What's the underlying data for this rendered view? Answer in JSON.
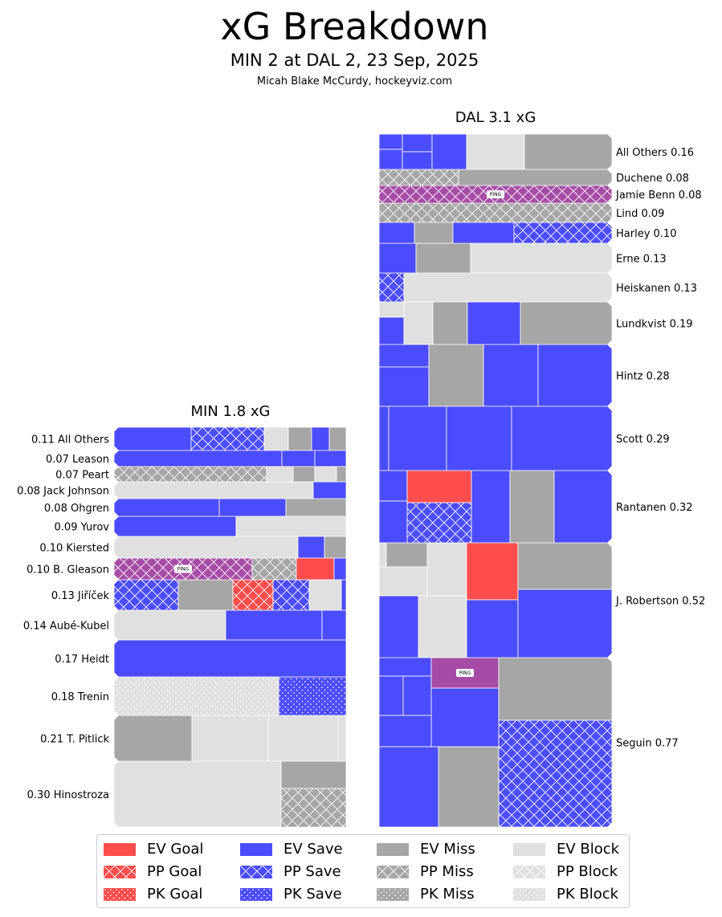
{
  "header": {
    "title": "xG Breakdown",
    "subtitle": "MIN 2 at DAL 2, 23 Sep, 2025",
    "credit": "Micah Blake McCurdy, hockeyviz.com"
  },
  "colors": {
    "goal": "#ff4d4d",
    "save": "#4c4cff",
    "miss": "#a6a6a6",
    "block": "#e0e0e0",
    "ping": "#a64ca6"
  },
  "chart_data": {
    "type": "treemap",
    "title": "xG Breakdown",
    "teams": [
      {
        "name": "MIN",
        "title": "MIN 1.8 xG",
        "total_xg": 1.8,
        "label_side": "left",
        "players": [
          {
            "name": "All Others",
            "xg": 0.11,
            "label": "0.11 All Others"
          },
          {
            "name": "Leason",
            "xg": 0.07,
            "label": "0.07 Leason"
          },
          {
            "name": "Peart",
            "xg": 0.07,
            "label": "0.07 Peart"
          },
          {
            "name": "Jack Johnson",
            "xg": 0.08,
            "label": "0.08 Jack Johnson"
          },
          {
            "name": "Ohgren",
            "xg": 0.08,
            "label": "0.08 Ohgren"
          },
          {
            "name": "Yurov",
            "xg": 0.09,
            "label": "0.09 Yurov"
          },
          {
            "name": "Kiersted",
            "xg": 0.1,
            "label": "0.10 Kiersted"
          },
          {
            "name": "B. Gleason",
            "xg": 0.1,
            "label": "0.10 B. Gleason"
          },
          {
            "name": "Jiříček",
            "xg": 0.13,
            "label": "0.13 Jiříček"
          },
          {
            "name": "Aubé-Kubel",
            "xg": 0.14,
            "label": "0.14 Aubé-Kubel"
          },
          {
            "name": "Heidt",
            "xg": 0.17,
            "label": "0.17 Heidt"
          },
          {
            "name": "Trenin",
            "xg": 0.18,
            "label": "0.18 Trenin"
          },
          {
            "name": "T. Pitlick",
            "xg": 0.21,
            "label": "0.21 T. Pitlick"
          },
          {
            "name": "Hinostroza",
            "xg": 0.3,
            "label": "0.30 Hinostroza"
          }
        ]
      },
      {
        "name": "DAL",
        "title": "DAL 3.1 xG",
        "total_xg": 3.1,
        "label_side": "right",
        "players": [
          {
            "name": "All Others",
            "xg": 0.16,
            "label": "All Others 0.16"
          },
          {
            "name": "Duchene",
            "xg": 0.08,
            "label": "Duchene 0.08"
          },
          {
            "name": "Jamie Benn",
            "xg": 0.08,
            "label": "Jamie Benn 0.08"
          },
          {
            "name": "Lind",
            "xg": 0.09,
            "label": "Lind 0.09"
          },
          {
            "name": "Harley",
            "xg": 0.1,
            "label": "Harley 0.10"
          },
          {
            "name": "Erne",
            "xg": 0.13,
            "label": "Erne 0.13"
          },
          {
            "name": "Heiskanen",
            "xg": 0.13,
            "label": "Heiskanen 0.13"
          },
          {
            "name": "Lundkvist",
            "xg": 0.19,
            "label": "Lundkvist 0.19"
          },
          {
            "name": "Hintz",
            "xg": 0.28,
            "label": "Hintz 0.28"
          },
          {
            "name": "Scott",
            "xg": 0.29,
            "label": "Scott 0.29"
          },
          {
            "name": "Rantanen",
            "xg": 0.32,
            "label": "Rantanen 0.32"
          },
          {
            "name": "J. Robertson",
            "xg": 0.52,
            "label": "J. Robertson 0.52"
          },
          {
            "name": "Seguin",
            "xg": 0.77,
            "label": "Seguin 0.77"
          }
        ]
      }
    ],
    "ping_label": "PING",
    "legend": [
      {
        "label": "EV Goal",
        "kind": "goal",
        "strength": "EV"
      },
      {
        "label": "PP Goal",
        "kind": "goal",
        "strength": "PP"
      },
      {
        "label": "PK Goal",
        "kind": "goal",
        "strength": "PK"
      },
      {
        "label": "EV Save",
        "kind": "save",
        "strength": "EV"
      },
      {
        "label": "PP Save",
        "kind": "save",
        "strength": "PP"
      },
      {
        "label": "PK Save",
        "kind": "save",
        "strength": "PK"
      },
      {
        "label": "EV Miss",
        "kind": "miss",
        "strength": "EV"
      },
      {
        "label": "PP Miss",
        "kind": "miss",
        "strength": "PP"
      },
      {
        "label": "PK Miss",
        "kind": "miss",
        "strength": "PK"
      },
      {
        "label": "EV Block",
        "kind": "block",
        "strength": "EV"
      },
      {
        "label": "PP Block",
        "kind": "block",
        "strength": "PP"
      },
      {
        "label": "PK Block",
        "kind": "block",
        "strength": "PK"
      }
    ]
  }
}
